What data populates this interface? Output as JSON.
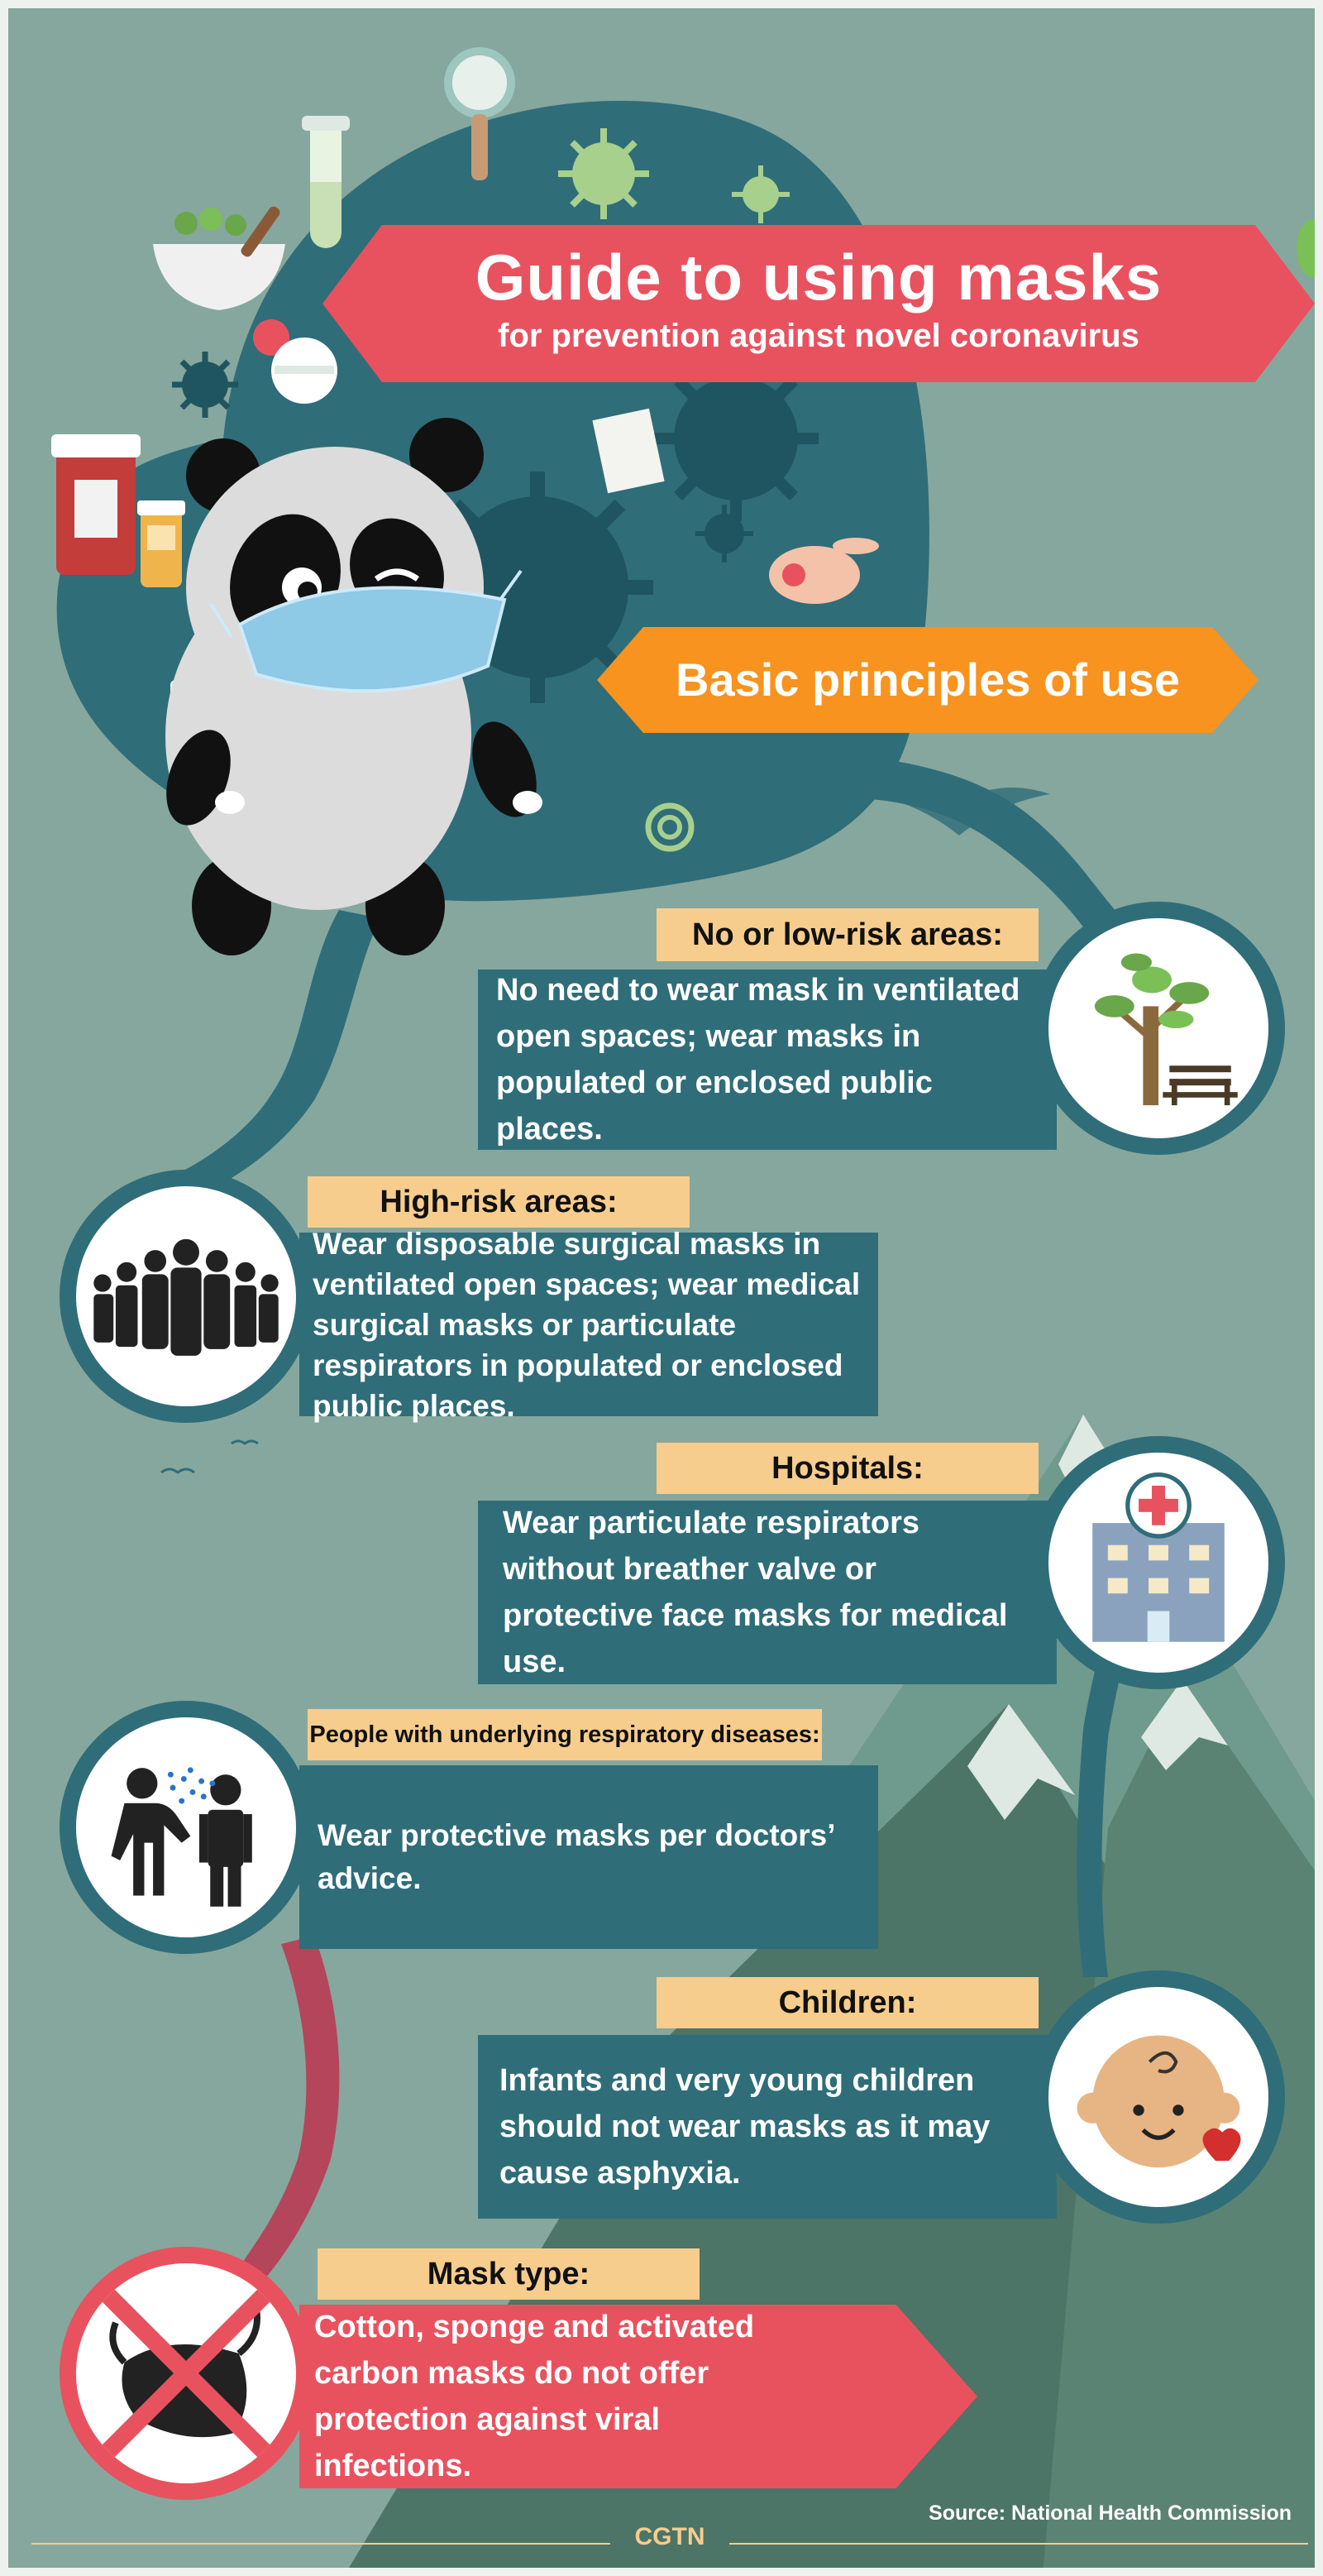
{
  "title": {
    "main": "Guide to using masks",
    "subtitle": "for prevention against novel coronavirus"
  },
  "section_heading": "Basic principles of use",
  "cards": [
    {
      "label": "No or low-risk areas:",
      "text": "No need to wear mask in ventilated open spaces; wear masks in populated or enclosed public places.",
      "icon": "park-tree-bench-icon"
    },
    {
      "label": "High-risk areas:",
      "text": "Wear disposable surgical masks in ventilated open spaces; wear medical surgical masks or particulate respirators in populated or enclosed public places.",
      "icon": "crowd-icon"
    },
    {
      "label": "Hospitals:",
      "text": "Wear particulate respirators without breather valve or protective face masks for medical use.",
      "icon": "hospital-icon"
    },
    {
      "label": "People with underlying respiratory diseases:",
      "text": "Wear protective masks per doctors’ advice.",
      "icon": "coughing-person-icon"
    },
    {
      "label": "Children:",
      "text": "Infants and very young children should not wear masks as it may cause asphyxia.",
      "icon": "baby-face-icon"
    },
    {
      "label": "Mask type:",
      "text": "Cotton, sponge and activated carbon masks do not offer protection against viral infections.",
      "icon": "crossed-out-mask-icon"
    }
  ],
  "footer": {
    "brand": "CGTN",
    "source": "Source: National Health Commission"
  },
  "colors": {
    "background": "#86a79d",
    "teal": "#2f6d79",
    "red": "#e8525f",
    "orange": "#f7931e",
    "tag": "#f6cd8d"
  }
}
